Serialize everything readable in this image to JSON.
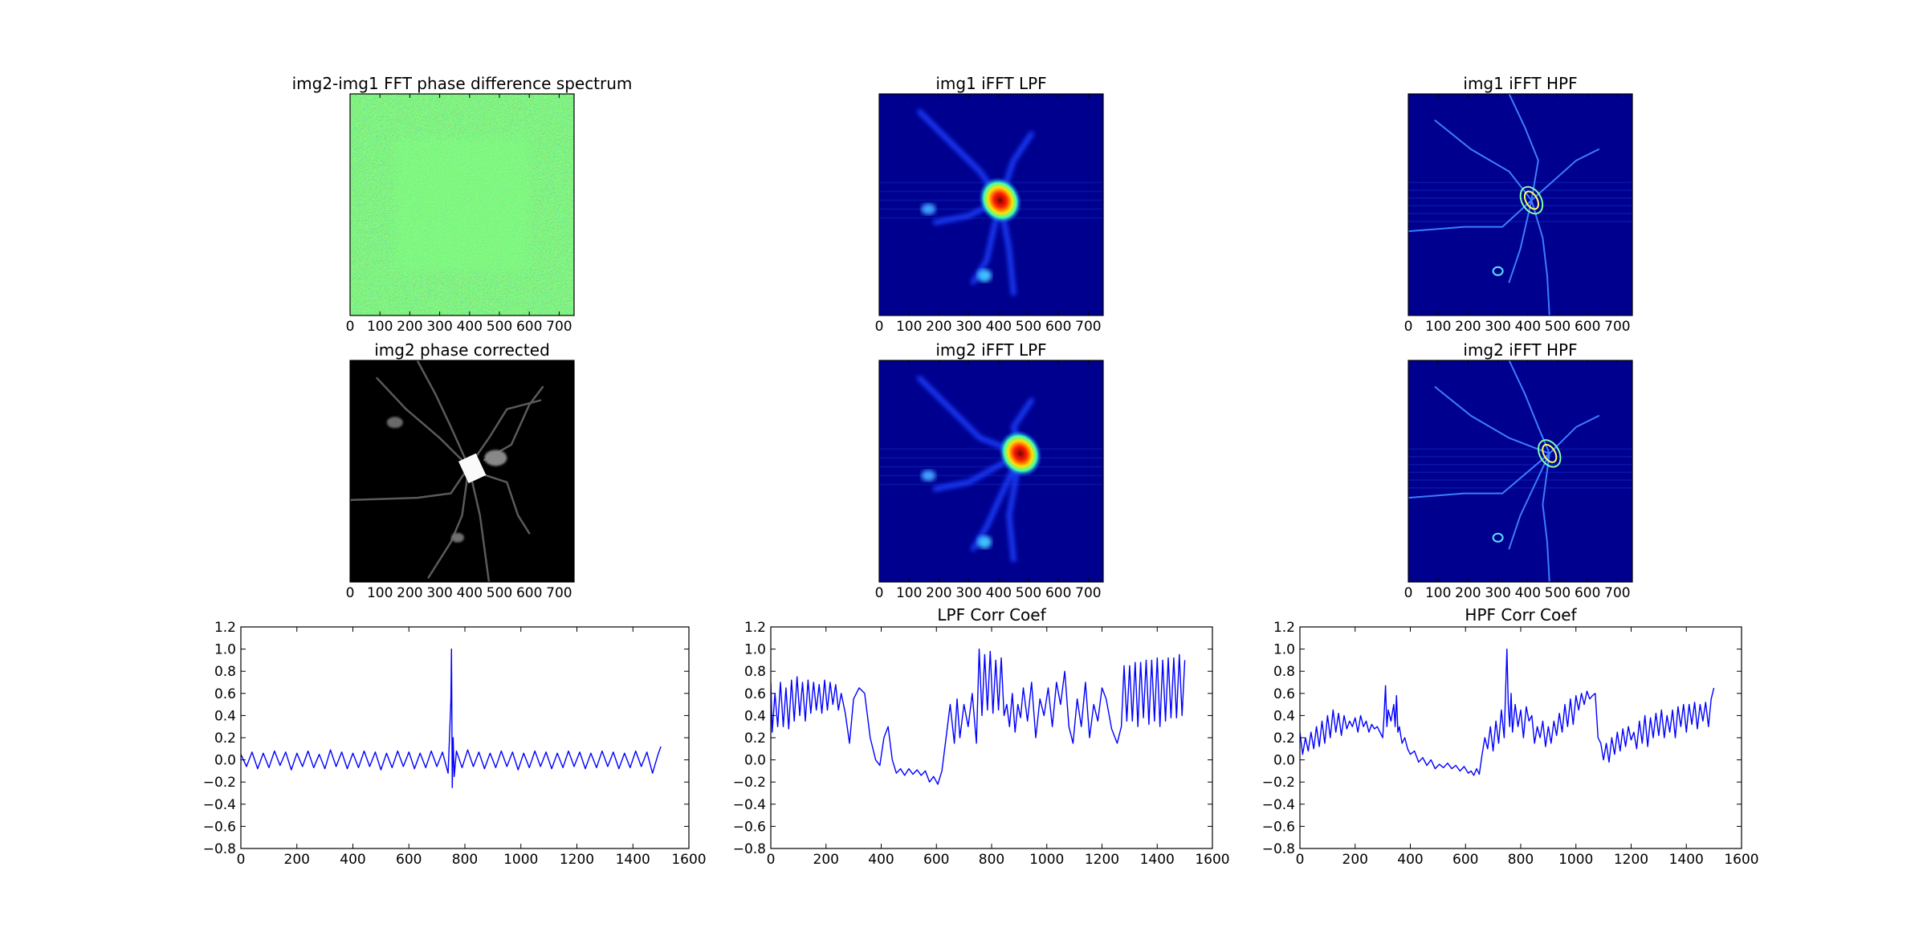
{
  "images": [
    {
      "id": "phase-diff",
      "title": "img2-img1 FFT phase difference spectrum",
      "style": "phase-noise",
      "xticks": [
        0,
        100,
        200,
        300,
        400,
        500,
        600,
        700
      ],
      "xrange": [
        0,
        750
      ]
    },
    {
      "id": "img1-lpf",
      "title": "img1 iFFT LPF",
      "style": "lpf1",
      "xticks": [
        0,
        100,
        200,
        300,
        400,
        500,
        600,
        700
      ],
      "xrange": [
        0,
        750
      ]
    },
    {
      "id": "img1-hpf",
      "title": "img1 iFFT HPF",
      "style": "hpf1",
      "xticks": [
        0,
        100,
        200,
        300,
        400,
        500,
        600,
        700
      ],
      "xrange": [
        0,
        750
      ]
    },
    {
      "id": "img2-phase-corrected",
      "title": "img2 phase corrected",
      "style": "gray",
      "xticks": [
        0,
        100,
        200,
        300,
        400,
        500,
        600,
        700
      ],
      "xrange": [
        0,
        750
      ]
    },
    {
      "id": "img2-lpf",
      "title": "img2 iFFT LPF",
      "style": "lpf2",
      "xticks": [
        0,
        100,
        200,
        300,
        400,
        500,
        600,
        700
      ],
      "xrange": [
        0,
        750
      ]
    },
    {
      "id": "img2-hpf",
      "title": "img2 iFFT HPF",
      "style": "hpf2",
      "xticks": [
        0,
        100,
        200,
        300,
        400,
        500,
        600,
        700
      ],
      "xrange": [
        0,
        750
      ]
    }
  ],
  "chart_data": [
    {
      "type": "line",
      "title": "",
      "xlim": [
        0,
        1600
      ],
      "ylim": [
        -0.8,
        1.2
      ],
      "xticks": [
        0,
        200,
        400,
        600,
        800,
        1000,
        1200,
        1400,
        1600
      ],
      "yticks": [
        -0.8,
        -0.6,
        -0.4,
        -0.2,
        0.0,
        0.2,
        0.4,
        0.6,
        0.8,
        1.0,
        1.2
      ],
      "xticklabels": [
        "0",
        "200",
        "400",
        "600",
        "800",
        "1000",
        "1200",
        "1400",
        "1600"
      ],
      "yticklabels": [
        "−0.8",
        "−0.6",
        "−0.4",
        "−0.2",
        "0.0",
        "0.2",
        "0.4",
        "0.6",
        "0.8",
        "1.0",
        "1.2"
      ],
      "color": "#0000ff",
      "series": [
        {
          "x": [
            0,
            20,
            40,
            60,
            80,
            100,
            120,
            140,
            160,
            180,
            200,
            220,
            240,
            260,
            280,
            300,
            320,
            340,
            360,
            380,
            400,
            420,
            440,
            460,
            480,
            500,
            520,
            540,
            560,
            580,
            600,
            620,
            640,
            660,
            680,
            700,
            720,
            740,
            745,
            750,
            752,
            755,
            758,
            762,
            770,
            790,
            810,
            830,
            850,
            870,
            890,
            910,
            930,
            950,
            970,
            990,
            1010,
            1030,
            1050,
            1070,
            1090,
            1110,
            1130,
            1150,
            1170,
            1190,
            1210,
            1230,
            1250,
            1270,
            1290,
            1310,
            1330,
            1350,
            1370,
            1390,
            1410,
            1430,
            1450,
            1470,
            1490,
            1500
          ],
          "y": [
            0.05,
            -0.06,
            0.07,
            -0.08,
            0.06,
            -0.07,
            0.08,
            -0.05,
            0.07,
            -0.09,
            0.06,
            -0.06,
            0.08,
            -0.07,
            0.05,
            -0.08,
            0.09,
            -0.06,
            0.07,
            -0.08,
            0.06,
            -0.07,
            0.08,
            -0.06,
            0.07,
            -0.09,
            0.06,
            -0.07,
            0.08,
            -0.06,
            0.07,
            -0.08,
            0.06,
            -0.07,
            0.08,
            -0.06,
            0.07,
            -0.12,
            0.2,
            0.55,
            1.0,
            -0.25,
            0.2,
            -0.15,
            0.08,
            -0.07,
            0.09,
            -0.06,
            0.07,
            -0.08,
            0.06,
            -0.07,
            0.08,
            -0.06,
            0.07,
            -0.09,
            0.06,
            -0.07,
            0.08,
            -0.06,
            0.07,
            -0.08,
            0.06,
            -0.07,
            0.08,
            -0.06,
            0.07,
            -0.08,
            0.06,
            -0.07,
            0.08,
            -0.06,
            0.07,
            -0.08,
            0.06,
            -0.07,
            0.08,
            -0.06,
            0.07,
            -0.12,
            0.05,
            0.12
          ]
        }
      ]
    },
    {
      "type": "line",
      "title": "LPF Corr Coef",
      "xlim": [
        0,
        1600
      ],
      "ylim": [
        -0.8,
        1.2
      ],
      "xticks": [
        0,
        200,
        400,
        600,
        800,
        1000,
        1200,
        1400,
        1600
      ],
      "yticks": [
        -0.8,
        -0.6,
        -0.4,
        -0.2,
        0.0,
        0.2,
        0.4,
        0.6,
        0.8,
        1.0,
        1.2
      ],
      "xticklabels": [
        "0",
        "200",
        "400",
        "600",
        "800",
        "1000",
        "1200",
        "1400",
        "1600"
      ],
      "yticklabels": [
        "−0.8",
        "−0.6",
        "−0.4",
        "−0.2",
        "0.0",
        "0.2",
        "0.4",
        "0.6",
        "0.8",
        "1.0",
        "1.2"
      ],
      "color": "#0000ff",
      "series": [
        {
          "x": [
            0,
            5,
            15,
            25,
            35,
            45,
            55,
            65,
            75,
            85,
            95,
            105,
            115,
            125,
            135,
            145,
            155,
            165,
            175,
            185,
            195,
            205,
            215,
            225,
            235,
            245,
            255,
            270,
            285,
            300,
            320,
            340,
            360,
            380,
            395,
            410,
            425,
            440,
            455,
            470,
            485,
            500,
            515,
            530,
            545,
            560,
            575,
            590,
            605,
            620,
            635,
            650,
            665,
            675,
            685,
            700,
            715,
            730,
            745,
            755,
            765,
            775,
            785,
            795,
            805,
            815,
            825,
            835,
            845,
            855,
            865,
            875,
            885,
            895,
            905,
            915,
            930,
            945,
            960,
            975,
            990,
            1005,
            1020,
            1035,
            1050,
            1065,
            1080,
            1095,
            1110,
            1125,
            1140,
            1155,
            1170,
            1185,
            1200,
            1215,
            1235,
            1255,
            1270,
            1280,
            1290,
            1300,
            1310,
            1320,
            1330,
            1340,
            1350,
            1360,
            1370,
            1380,
            1390,
            1400,
            1410,
            1420,
            1430,
            1440,
            1450,
            1460,
            1470,
            1480,
            1490,
            1500
          ],
          "y": [
            0.7,
            0.25,
            0.6,
            0.3,
            0.7,
            0.3,
            0.65,
            0.28,
            0.72,
            0.35,
            0.75,
            0.4,
            0.7,
            0.35,
            0.72,
            0.42,
            0.7,
            0.45,
            0.68,
            0.42,
            0.72,
            0.45,
            0.7,
            0.5,
            0.68,
            0.45,
            0.6,
            0.42,
            0.15,
            0.55,
            0.65,
            0.6,
            0.2,
            0.0,
            -0.05,
            0.2,
            0.3,
            0.0,
            -0.12,
            -0.08,
            -0.14,
            -0.08,
            -0.13,
            -0.09,
            -0.14,
            -0.1,
            -0.2,
            -0.15,
            -0.22,
            -0.1,
            0.2,
            0.5,
            0.15,
            0.55,
            0.2,
            0.5,
            0.3,
            0.6,
            0.15,
            1.0,
            0.4,
            0.95,
            0.45,
            0.98,
            0.42,
            0.9,
            0.45,
            0.92,
            0.4,
            0.5,
            0.3,
            0.6,
            0.25,
            0.5,
            0.38,
            0.65,
            0.35,
            0.7,
            0.2,
            0.55,
            0.4,
            0.65,
            0.3,
            0.7,
            0.5,
            0.8,
            0.3,
            0.15,
            0.55,
            0.3,
            0.7,
            0.2,
            0.5,
            0.35,
            0.65,
            0.55,
            0.28,
            0.15,
            0.3,
            0.85,
            0.35,
            0.85,
            0.35,
            0.88,
            0.3,
            0.88,
            0.38,
            0.9,
            0.32,
            0.9,
            0.35,
            0.92,
            0.3,
            0.9,
            0.35,
            0.92,
            0.38,
            0.92,
            0.38,
            0.95,
            0.4,
            0.9
          ]
        }
      ]
    },
    {
      "type": "line",
      "title": "HPF Corr Coef",
      "xlim": [
        0,
        1600
      ],
      "ylim": [
        -0.8,
        1.2
      ],
      "xticks": [
        0,
        200,
        400,
        600,
        800,
        1000,
        1200,
        1400,
        1600
      ],
      "yticks": [
        -0.8,
        -0.6,
        -0.4,
        -0.2,
        0.0,
        0.2,
        0.4,
        0.6,
        0.8,
        1.0,
        1.2
      ],
      "xticklabels": [
        "0",
        "200",
        "400",
        "600",
        "800",
        "1000",
        "1200",
        "1400",
        "1600"
      ],
      "yticklabels": [
        "−0.8",
        "−0.6",
        "−0.4",
        "−0.2",
        "0.0",
        "0.2",
        "0.4",
        "0.6",
        "0.8",
        "1.0",
        "1.2"
      ],
      "color": "#0000ff",
      "series": [
        {
          "x": [
            0,
            10,
            20,
            30,
            40,
            50,
            60,
            70,
            80,
            90,
            100,
            110,
            120,
            130,
            140,
            150,
            160,
            170,
            180,
            190,
            200,
            210,
            220,
            230,
            240,
            250,
            260,
            270,
            280,
            290,
            300,
            305,
            310,
            315,
            320,
            330,
            340,
            345,
            350,
            355,
            360,
            370,
            380,
            390,
            400,
            415,
            430,
            445,
            460,
            475,
            490,
            505,
            520,
            535,
            550,
            565,
            580,
            595,
            610,
            620,
            630,
            640,
            650,
            660,
            670,
            680,
            690,
            700,
            710,
            720,
            730,
            740,
            745,
            750,
            755,
            760,
            765,
            770,
            780,
            790,
            800,
            810,
            820,
            830,
            840,
            850,
            860,
            870,
            880,
            890,
            900,
            910,
            920,
            930,
            940,
            950,
            960,
            970,
            980,
            990,
            1000,
            1010,
            1020,
            1030,
            1040,
            1050,
            1060,
            1070,
            1080,
            1090,
            1100,
            1110,
            1120,
            1130,
            1140,
            1150,
            1160,
            1170,
            1180,
            1190,
            1200,
            1210,
            1220,
            1230,
            1240,
            1250,
            1260,
            1270,
            1280,
            1290,
            1300,
            1310,
            1320,
            1330,
            1340,
            1350,
            1360,
            1370,
            1380,
            1390,
            1400,
            1410,
            1420,
            1430,
            1440,
            1450,
            1460,
            1470,
            1480,
            1490,
            1500
          ],
          "y": [
            0.25,
            0.05,
            0.2,
            0.08,
            0.25,
            0.1,
            0.3,
            0.12,
            0.35,
            0.15,
            0.4,
            0.2,
            0.45,
            0.25,
            0.42,
            0.22,
            0.4,
            0.28,
            0.35,
            0.3,
            0.38,
            0.25,
            0.4,
            0.3,
            0.35,
            0.25,
            0.32,
            0.28,
            0.3,
            0.25,
            0.2,
            0.4,
            0.67,
            0.3,
            0.45,
            0.35,
            0.5,
            0.3,
            0.58,
            0.25,
            0.3,
            0.15,
            0.2,
            0.1,
            0.05,
            0.08,
            -0.02,
            0.02,
            -0.05,
            0.0,
            -0.08,
            -0.04,
            -0.07,
            -0.03,
            -0.08,
            -0.05,
            -0.1,
            -0.06,
            -0.12,
            -0.1,
            -0.14,
            -0.08,
            -0.13,
            0.05,
            0.2,
            0.1,
            0.3,
            0.08,
            0.35,
            0.15,
            0.45,
            0.2,
            0.6,
            1.0,
            0.5,
            0.3,
            0.6,
            0.25,
            0.5,
            0.3,
            0.45,
            0.2,
            0.48,
            0.35,
            0.4,
            0.15,
            0.3,
            0.2,
            0.35,
            0.12,
            0.3,
            0.15,
            0.35,
            0.22,
            0.42,
            0.25,
            0.5,
            0.3,
            0.55,
            0.32,
            0.58,
            0.45,
            0.6,
            0.5,
            0.62,
            0.55,
            0.58,
            0.6,
            0.2,
            0.15,
            0.0,
            0.15,
            -0.02,
            0.2,
            0.05,
            0.25,
            0.08,
            0.28,
            0.12,
            0.3,
            0.18,
            0.25,
            0.1,
            0.35,
            0.15,
            0.4,
            0.12,
            0.38,
            0.2,
            0.42,
            0.22,
            0.45,
            0.2,
            0.4,
            0.25,
            0.45,
            0.2,
            0.48,
            0.3,
            0.5,
            0.25,
            0.5,
            0.32,
            0.52,
            0.28,
            0.5,
            0.35,
            0.52,
            0.3,
            0.55,
            0.65
          ]
        }
      ]
    }
  ]
}
